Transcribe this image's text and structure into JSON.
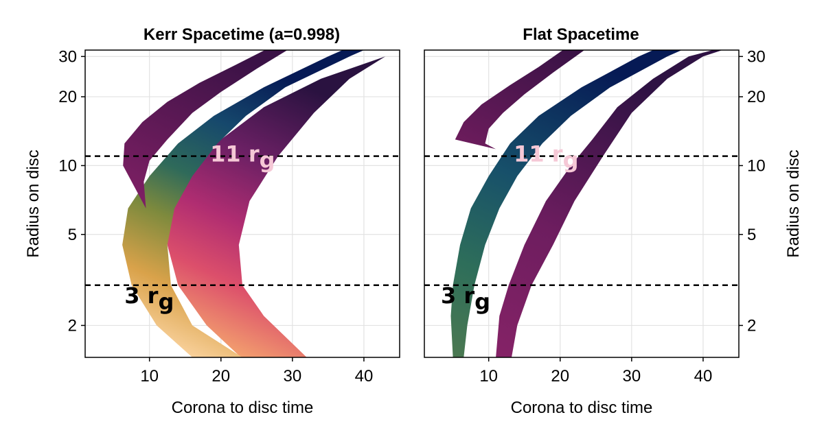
{
  "chart_data": [
    {
      "type": "area",
      "title": "Kerr Spacetime (a=0.998)",
      "xlabel": "Corona to disc time",
      "ylabel": "Radius on disc",
      "xlim": [
        1,
        45
      ],
      "ylim": [
        1.45,
        32
      ],
      "yscale": "log",
      "xticks": [
        "10",
        "20",
        "30",
        "40"
      ],
      "yticks": [
        "2",
        "5",
        "10",
        "20",
        "30"
      ],
      "ylabel_side": "left",
      "grid": true,
      "hlines": [
        11,
        3
      ],
      "annotations": [
        {
          "label": "11 r",
          "sub": "g",
          "x": 18.5,
          "y": 10.4,
          "color": "#f5c8d6"
        },
        {
          "label": "3 r",
          "sub": "g",
          "x": 6.5,
          "y": 2.5,
          "color": "#000000"
        }
      ],
      "bands": [
        {
          "name": "outer",
          "left": [
            [
              22.8,
              1.45
            ],
            [
              18,
              2
            ],
            [
              14,
              3
            ],
            [
              12.5,
              4.5
            ],
            [
              13,
              7
            ],
            [
              16,
              10
            ],
            [
              20,
              13
            ],
            [
              26,
              18
            ],
            [
              34,
              24
            ],
            [
              43,
              30
            ],
            [
              46,
              33
            ]
          ],
          "right": [
            [
              32,
              1.45
            ],
            [
              26,
              2.2
            ],
            [
              23,
              3
            ],
            [
              22.5,
              4.5
            ],
            [
              24,
              7
            ],
            [
              28,
              11
            ],
            [
              33,
              17
            ],
            [
              38,
              24
            ],
            [
              43,
              30
            ],
            [
              46,
              33
            ]
          ],
          "colors": [
            [
              0,
              "#fde9a8"
            ],
            [
              0.18,
              "#f4a56e"
            ],
            [
              0.38,
              "#dc4f6b"
            ],
            [
              0.55,
              "#b02d71"
            ],
            [
              0.75,
              "#6b2064"
            ],
            [
              1,
              "#2a1240"
            ]
          ]
        },
        {
          "name": "middle",
          "left": [
            [
              16,
              1.45
            ],
            [
              11,
              2
            ],
            [
              7.5,
              3
            ],
            [
              6.2,
              4.5
            ],
            [
              7,
              6.5
            ],
            [
              10,
              9
            ],
            [
              14,
              12.5
            ],
            [
              19,
              16.5
            ],
            [
              26,
              22
            ],
            [
              35,
              30
            ],
            [
              38,
              33
            ]
          ],
          "right": [
            [
              23,
              1.45
            ],
            [
              16,
              2
            ],
            [
              13,
              3
            ],
            [
              12.5,
              4.5
            ],
            [
              13.5,
              6.5
            ],
            [
              16,
              9
            ],
            [
              19.5,
              12.5
            ],
            [
              23.5,
              16.5
            ],
            [
              29,
              22
            ],
            [
              38,
              30
            ],
            [
              41,
              33
            ]
          ],
          "colors": [
            [
              0,
              "#f4c2ee"
            ],
            [
              0.12,
              "#fbd4a1"
            ],
            [
              0.3,
              "#d9a24a"
            ],
            [
              0.48,
              "#7e8a3d"
            ],
            [
              0.62,
              "#2f6a5a"
            ],
            [
              0.8,
              "#16486c"
            ],
            [
              1,
              "#061a55"
            ]
          ]
        },
        {
          "name": "inner",
          "left": [
            [
              9.5,
              6.5
            ],
            [
              6.3,
              10
            ],
            [
              6.5,
              12.5
            ],
            [
              9,
              15.5
            ],
            [
              12.5,
              19
            ],
            [
              17,
              23
            ],
            [
              22,
              27.5
            ],
            [
              27,
              33
            ]
          ],
          "right": [
            [
              9.5,
              6.5
            ],
            [
              9.2,
              8.5
            ],
            [
              10,
              10.5
            ],
            [
              12.5,
              13
            ],
            [
              16,
              17
            ],
            [
              20,
              21
            ],
            [
              25,
              26.5
            ],
            [
              30,
              33
            ]
          ],
          "colors": [
            [
              0,
              "#9a2a6c"
            ],
            [
              0.5,
              "#7c1f63"
            ],
            [
              1,
              "#3a1246"
            ]
          ]
        }
      ]
    },
    {
      "type": "area",
      "title": "Flat Spacetime",
      "xlabel": "Corona to disc time",
      "ylabel": "Radius on disc",
      "xlim": [
        1,
        45
      ],
      "ylim": [
        1.45,
        32
      ],
      "yscale": "log",
      "xticks": [
        "10",
        "20",
        "30",
        "40"
      ],
      "yticks": [
        "2",
        "5",
        "10",
        "20",
        "30"
      ],
      "ylabel_side": "right",
      "grid": true,
      "hlines": [
        11,
        3
      ],
      "annotations": [
        {
          "label": "11 r",
          "sub": "g",
          "x": 13.5,
          "y": 10.4,
          "color": "#f5c8d6"
        },
        {
          "label": "3 r",
          "sub": "g",
          "x": 3.3,
          "y": 2.5,
          "color": "#000000"
        }
      ],
      "bands": [
        {
          "name": "outer",
          "left": [
            [
              11,
              1.45
            ],
            [
              11.5,
              2.2
            ],
            [
              12.8,
              3
            ],
            [
              15,
              4.5
            ],
            [
              18,
              7
            ],
            [
              21.5,
              10
            ],
            [
              24.5,
              13
            ],
            [
              28,
              18
            ],
            [
              33,
              24
            ],
            [
              38,
              30
            ],
            [
              43,
              33
            ]
          ],
          "right": [
            [
              13.2,
              1.45
            ],
            [
              14,
              2
            ],
            [
              16,
              3
            ],
            [
              19,
              4.5
            ],
            [
              22,
              7
            ],
            [
              26,
              11
            ],
            [
              30,
              17
            ],
            [
              35,
              24
            ],
            [
              40,
              30
            ],
            [
              44,
              33
            ]
          ],
          "colors": [
            [
              0,
              "#8a2468"
            ],
            [
              0.5,
              "#6d1d5f"
            ],
            [
              1,
              "#2e1243"
            ]
          ]
        },
        {
          "name": "middle",
          "left": [
            [
              5,
              1.45
            ],
            [
              4.7,
              2.2
            ],
            [
              5,
              3
            ],
            [
              6,
              4.5
            ],
            [
              7.5,
              6.5
            ],
            [
              10,
              9
            ],
            [
              13,
              12.5
            ],
            [
              17,
              16.5
            ],
            [
              23,
              22
            ],
            [
              31,
              30
            ],
            [
              34,
              33
            ]
          ],
          "right": [
            [
              6.5,
              1.45
            ],
            [
              7,
              2
            ],
            [
              8,
              3
            ],
            [
              9.5,
              4.5
            ],
            [
              11.5,
              6.5
            ],
            [
              14,
              9
            ],
            [
              17.5,
              12.5
            ],
            [
              21.5,
              16.5
            ],
            [
              27,
              22
            ],
            [
              35,
              30
            ],
            [
              38,
              33
            ]
          ],
          "colors": [
            [
              0,
              "#4f7a50"
            ],
            [
              0.3,
              "#2e6e5a"
            ],
            [
              0.6,
              "#17506a"
            ],
            [
              1,
              "#061a55"
            ]
          ]
        },
        {
          "name": "inner",
          "left": [
            [
              11,
              11.8
            ],
            [
              5.3,
              13
            ],
            [
              6.5,
              15.5
            ],
            [
              9,
              18.5
            ],
            [
              13,
              22.5
            ],
            [
              17,
              27
            ],
            [
              21,
              33
            ]
          ],
          "right": [
            [
              11,
              11.8
            ],
            [
              9.5,
              12.5
            ],
            [
              10,
              14.5
            ],
            [
              12,
              17
            ],
            [
              15,
              20.5
            ],
            [
              19,
              25.5
            ],
            [
              24,
              33
            ]
          ],
          "colors": [
            [
              0,
              "#9a2a6c"
            ],
            [
              0.5,
              "#7c1f63"
            ],
            [
              1,
              "#3a1246"
            ]
          ]
        }
      ]
    }
  ]
}
